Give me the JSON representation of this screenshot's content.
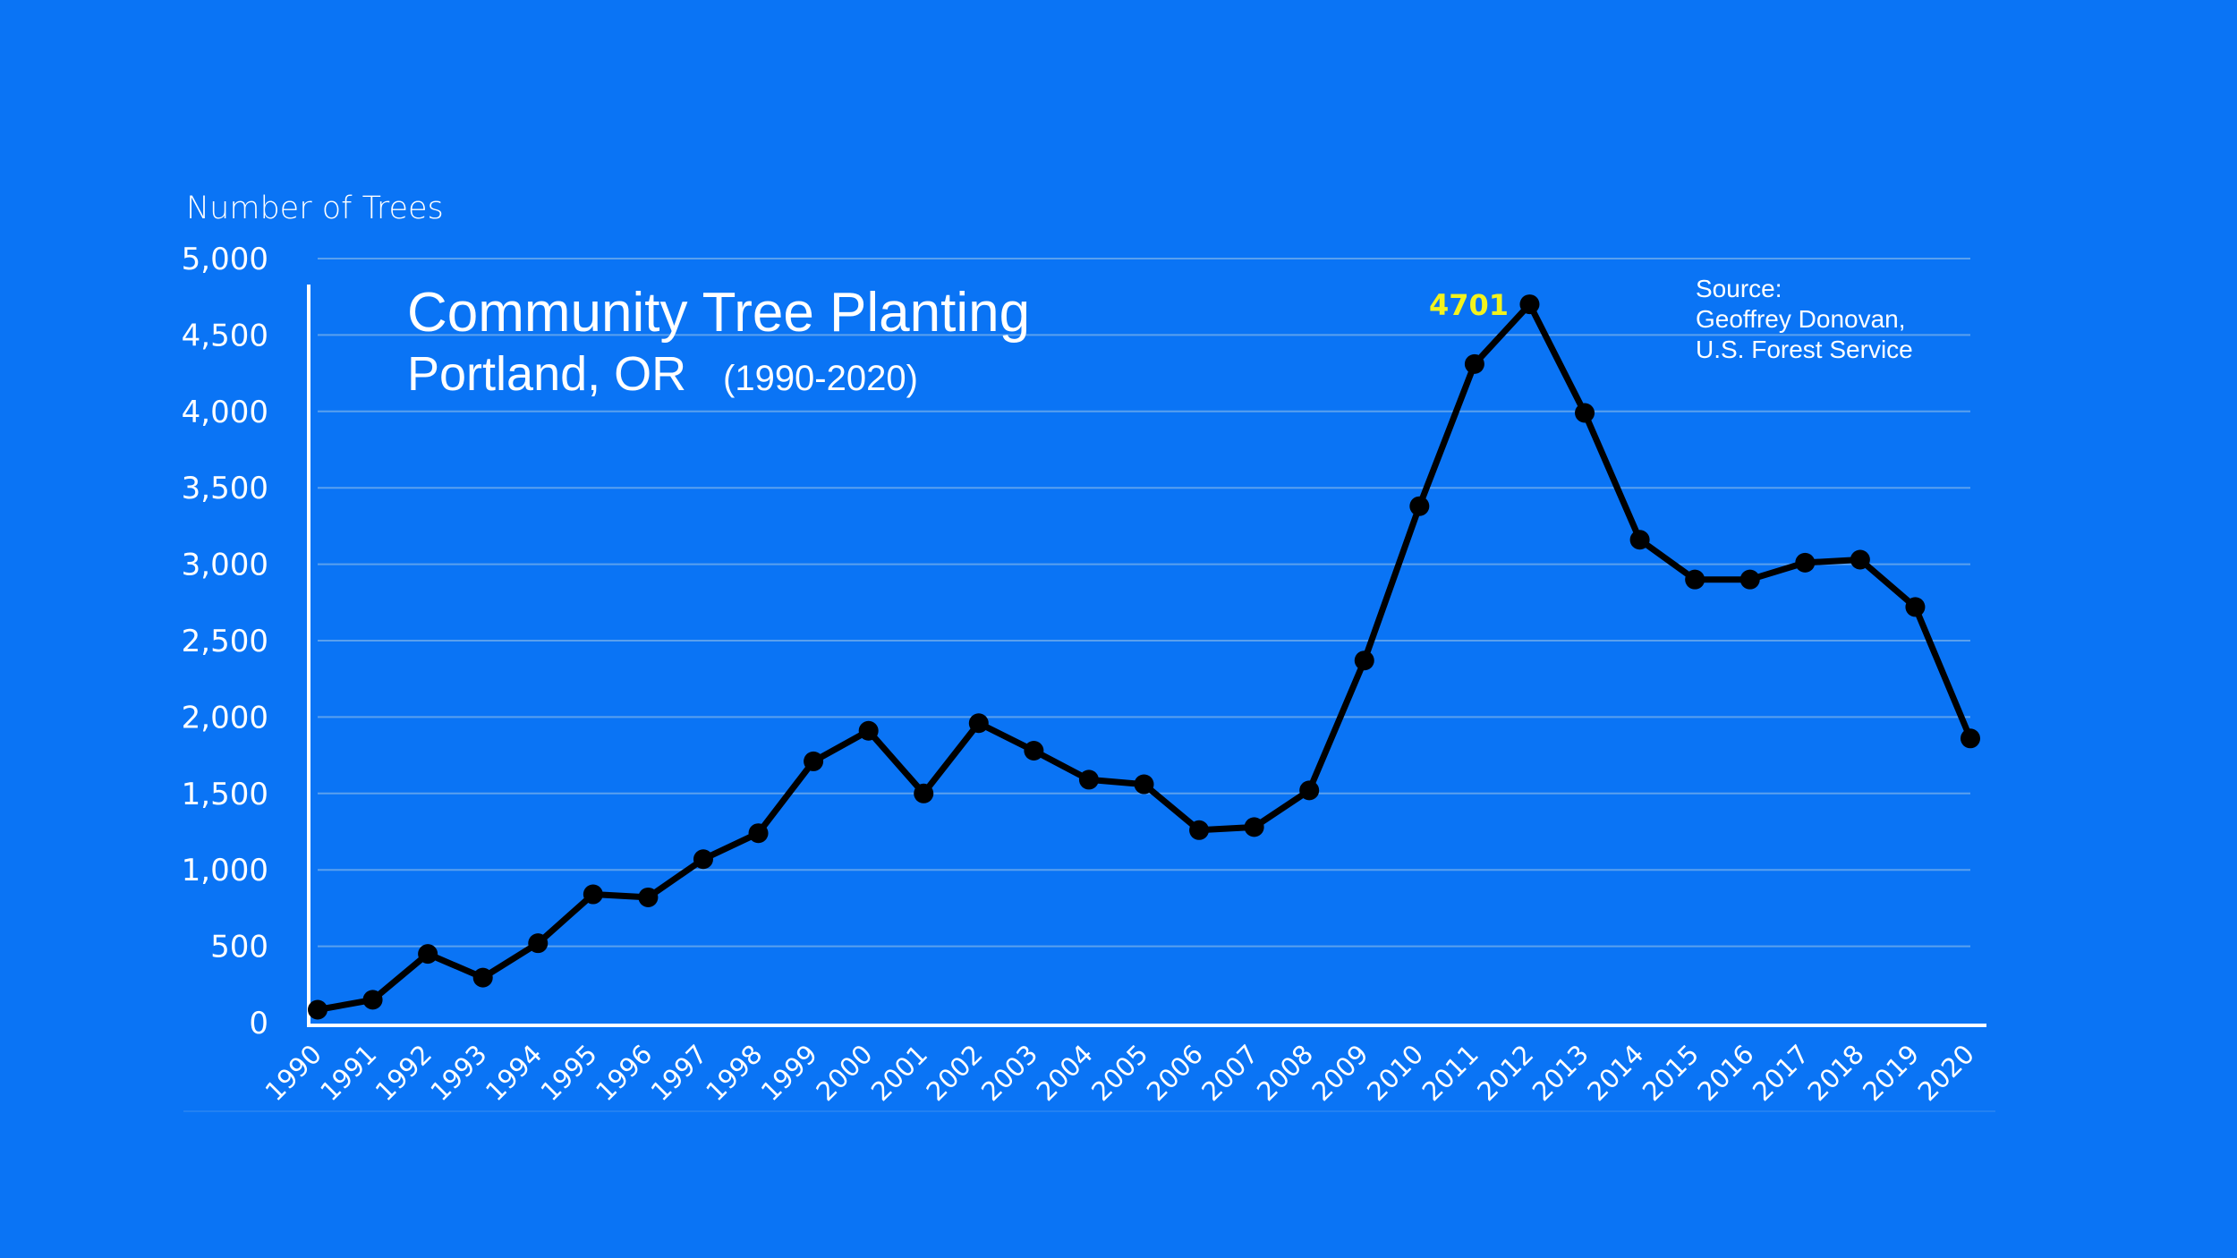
{
  "chart_data": {
    "type": "line",
    "title": "Community Tree Planting",
    "subtitle": "Portland, OR",
    "subtitle_years": "(1990-2020)",
    "ylabel": "Number of Trees",
    "xlabel": "",
    "source_lines": [
      "Source:",
      "Geoffrey Donovan,",
      "U.S. Forest Service"
    ],
    "ylim": [
      0,
      5000
    ],
    "yticks": [
      0,
      500,
      1000,
      1500,
      2000,
      2500,
      3000,
      3500,
      4000,
      4500,
      5000
    ],
    "ytick_labels": [
      "0",
      "500",
      "1,000",
      "1,500",
      "2,000",
      "2,500",
      "3,000",
      "3,500",
      "4,000",
      "4,500",
      "5,000"
    ],
    "grid": true,
    "categories": [
      "1990",
      "1991",
      "1992",
      "1993",
      "1994",
      "1995",
      "1996",
      "1997",
      "1998",
      "1999",
      "2000",
      "2001",
      "2002",
      "2003",
      "2004",
      "2005",
      "2006",
      "2007",
      "2008",
      "2009",
      "2010",
      "2011",
      "2012",
      "2013",
      "2014",
      "2015",
      "2016",
      "2017",
      "2018",
      "2019",
      "2020"
    ],
    "series": [
      {
        "values": [
          85,
          150,
          450,
          295,
          520,
          840,
          820,
          1070,
          1240,
          1710,
          1910,
          1500,
          1960,
          1780,
          1590,
          1560,
          1260,
          1280,
          1520,
          2370,
          3380,
          4310,
          4701,
          3990,
          3160,
          2900,
          2900,
          3010,
          3030,
          2720,
          1860
        ],
        "color": "#000000"
      }
    ],
    "annotations": [
      {
        "category": "2012",
        "text": "4701",
        "color": "#f3f31c"
      }
    ],
    "colors": {
      "background": "#0a74f5",
      "line": "#000000",
      "axis": "#ffffff",
      "grid": "#5aa0ee",
      "annotation": "#f3f31c"
    }
  }
}
